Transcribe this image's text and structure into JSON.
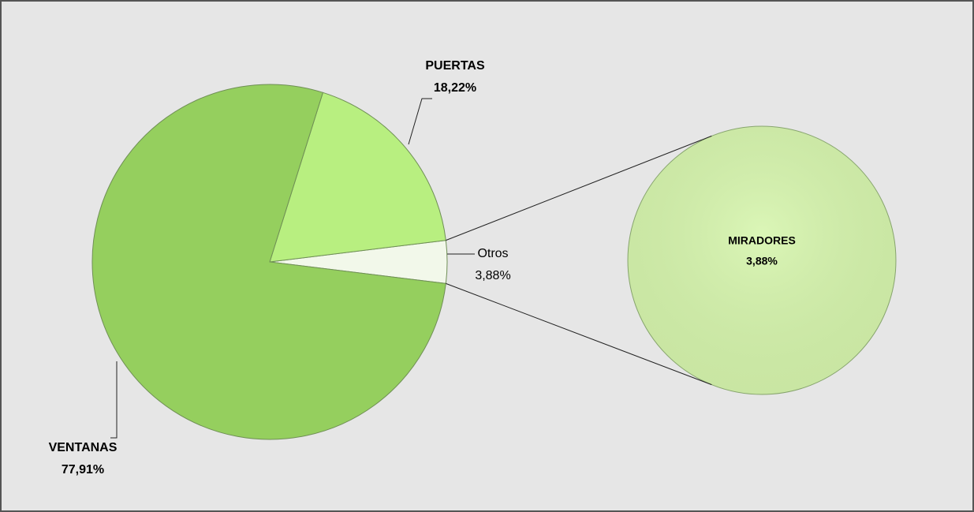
{
  "chart_data": {
    "type": "pie-of-pie",
    "categories": [
      "VENTANAS",
      "PUERTAS",
      "Otros"
    ],
    "values": [
      77.91,
      18.22,
      3.88
    ],
    "value_labels": [
      "77,91%",
      "18,22%",
      "3,88%"
    ],
    "colors": [
      "#95cf5e",
      "#b8ef80",
      "#f2f8ea"
    ],
    "secondary": {
      "categories": [
        "MIRADORES"
      ],
      "values": [
        3.88
      ],
      "value_labels": [
        "3,88%"
      ],
      "color": "#d6f5ad"
    }
  }
}
